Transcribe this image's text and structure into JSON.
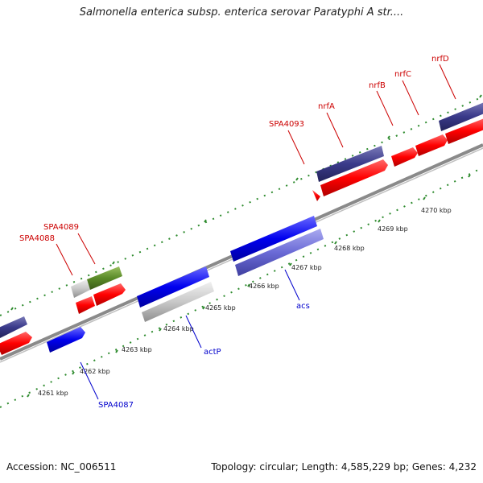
{
  "title": "Salmonella enterica subsp. enterica serovar Paratyphi A str....",
  "footer": {
    "accession": "Accession: NC_006511",
    "stats": "Topology: circular; Length: 4,585,229 bp; Genes: 4,232"
  },
  "colors": {
    "backbone": "#8a8a8a",
    "tick": "#2e8b2e",
    "red_feature": "#ff0000",
    "purple_feature": "#3a3a8a",
    "olive_feature": "#5a8a28",
    "gray_feature": "#c8c8c8",
    "blue_feature": "#0000ee",
    "lightpurple_feature": "#6a6ad6",
    "label_red": "#cc0000",
    "label_blue": "#0000cc"
  },
  "scale": {
    "unit": "kbp",
    "ticks": [
      4261,
      4262,
      4263,
      4264,
      4265,
      4266,
      4267,
      4268,
      4269,
      4270
    ],
    "tick_labels": [
      "4261 kbp",
      "4262 kbp",
      "4263 kbp",
      "4264 kbp",
      "4265 kbp",
      "4266 kbp",
      "4267 kbp",
      "4268 kbp",
      "4269 kbp",
      "4270 kbp"
    ]
  },
  "genes": {
    "red": [
      "SPA4088",
      "SPA4089",
      "SPA4093",
      "nrfA",
      "nrfB",
      "nrfC",
      "nrfD"
    ],
    "blue": [
      "actP",
      "acs",
      "SPA4087"
    ]
  }
}
